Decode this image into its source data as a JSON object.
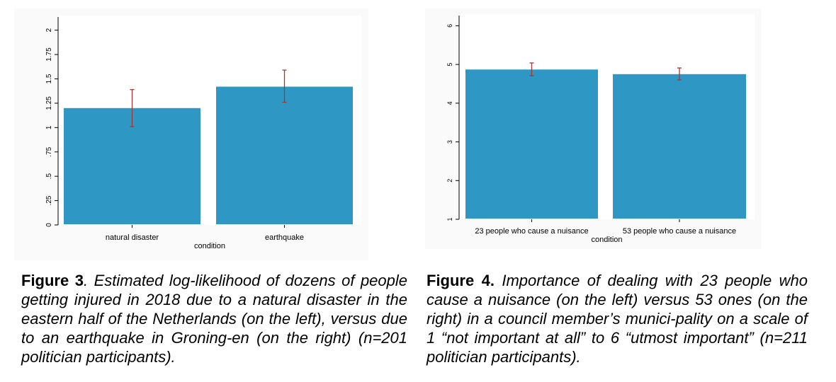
{
  "colors": {
    "bar": "#2e97c3",
    "errorbar": "#9c3a3a",
    "plot_bg": "#ffffff",
    "outer_bg": "#fafafa"
  },
  "chart_data": [
    {
      "type": "bar",
      "categories": [
        "natural disaster",
        "earthquake"
      ],
      "values": [
        1.2,
        1.42
      ],
      "error_low": [
        1.01,
        1.26
      ],
      "error_high": [
        1.39,
        1.59
      ],
      "xlabel": "condition",
      "ylabel": "",
      "ylim": [
        0,
        2.15
      ],
      "yticks": [
        0,
        0.25,
        0.5,
        0.75,
        1,
        1.25,
        1.5,
        1.75,
        2
      ],
      "ytick_labels": [
        "0",
        ".25",
        ".5",
        ".75",
        "1",
        "1.25",
        "1.5",
        "1.75",
        "2"
      ],
      "grid": false
    },
    {
      "type": "bar",
      "categories": [
        "23 people who cause a nuisance",
        "53 people who cause a nuisance"
      ],
      "values": [
        4.87,
        4.75
      ],
      "error_low": [
        4.71,
        4.6
      ],
      "error_high": [
        5.04,
        4.91
      ],
      "xlabel": "condition",
      "ylabel": "",
      "ylim": [
        1,
        6.3
      ],
      "yticks": [
        1,
        2,
        3,
        4,
        5,
        6
      ],
      "ytick_labels": [
        "1",
        "2",
        "3",
        "4",
        "5",
        "6"
      ],
      "grid": false
    }
  ],
  "captions": {
    "fig3": {
      "label": "Figure 3",
      "text": ". Estimated log-likelihood of dozens of people getting injured in 2018 due to a natural disaster in the eastern half of the Netherlands (on the left), versus due to an earthquake in Groning-en (on the right) (n=201 politician participants)."
    },
    "fig4": {
      "label": "Figure 4.",
      "text": " Importance of dealing with 23 people who cause a nuisance (on the left) versus 53 ones (on the right) in a council member’s munici-pality on a scale of 1 “not important at all” to 6 “utmost important” (n=211 politician participants)."
    }
  }
}
